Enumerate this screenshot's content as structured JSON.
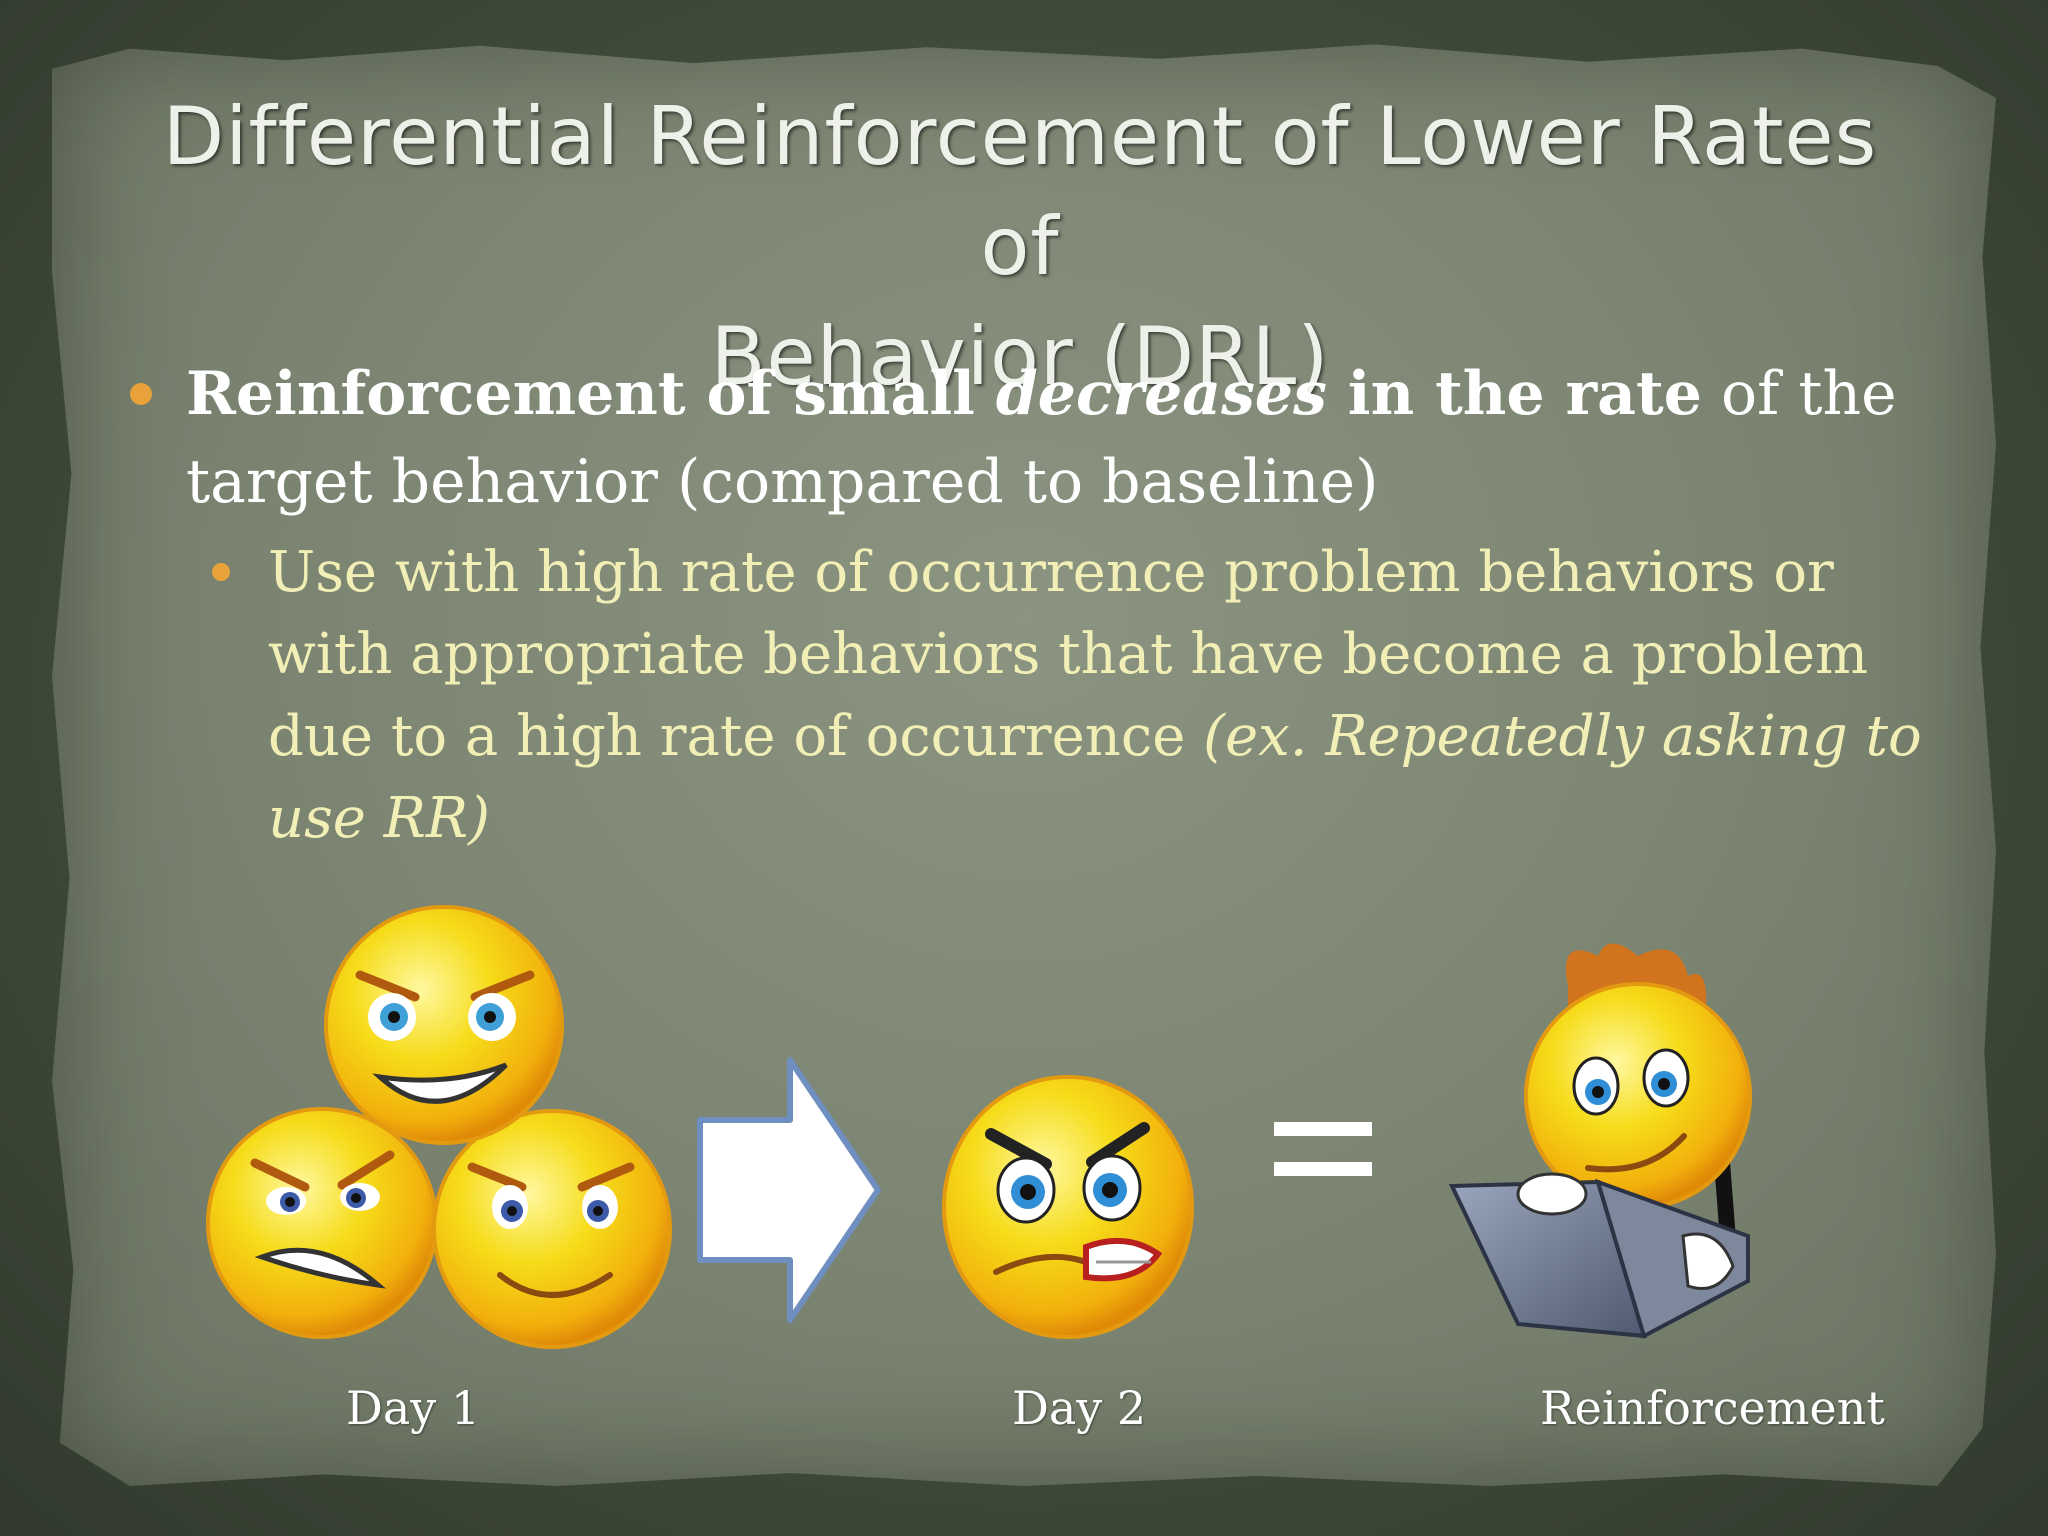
{
  "title": {
    "line1": "Differential Reinforcement of Lower Rates of",
    "line2": "Behavior (DRL)"
  },
  "bullet1": {
    "bold_a": "Reinforcement of small ",
    "bold_italic": "decreases",
    "bold_b": " in the rate",
    "rest": " of the target behavior (compared to baseline)"
  },
  "subbullet1": {
    "text": "Use with high rate of occurrence problem behaviors or with appropriate behaviors that have become a problem due to a high rate of occurrence ",
    "italic": "(ex. Repeatedly asking to use RR)"
  },
  "captions": {
    "day1": "Day 1",
    "day2": "Day 2",
    "reinforcement": "Reinforcement"
  },
  "icons": {
    "angry_faces_group": "three-angry-smileys-icon",
    "arrow": "right-arrow-icon",
    "single_angry_face": "angry-smiley-icon",
    "equals": "equals-sign-icon",
    "laptop_face": "smiley-with-laptop-icon"
  },
  "colors": {
    "title": "#eef0ea",
    "bullet_text": "#ffffff",
    "sub_bullet_text": "#f2efb6",
    "bullet_dot": "#e9a23b"
  }
}
